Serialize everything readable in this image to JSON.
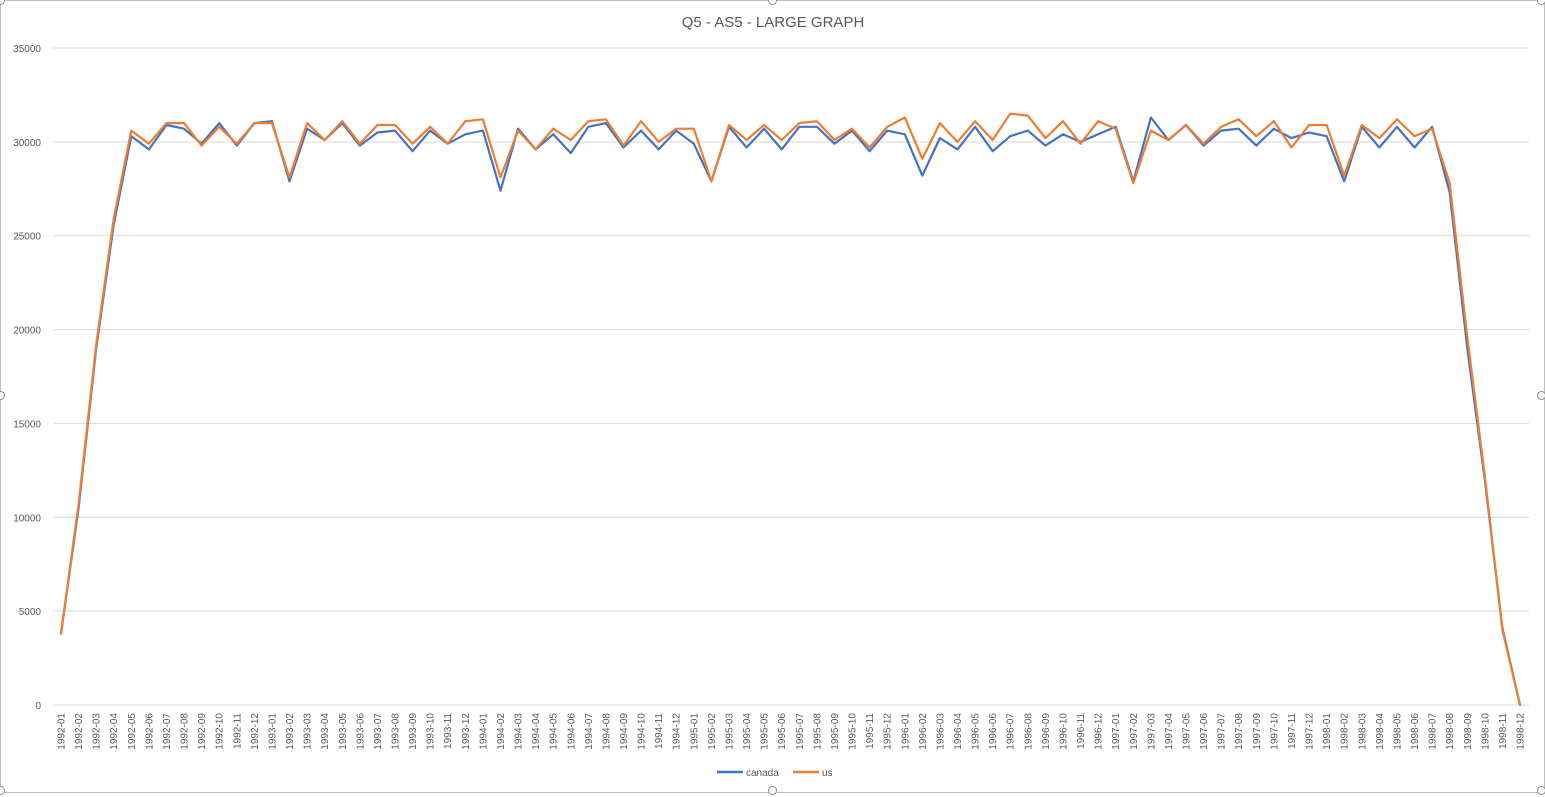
{
  "chart_data": {
    "type": "line",
    "title": "Q5 - AS5 - LARGE GRAPH",
    "xlabel": "",
    "ylabel": "",
    "ylim": [
      0,
      35000
    ],
    "yticks": [
      0,
      5000,
      10000,
      15000,
      20000,
      25000,
      30000,
      35000
    ],
    "grid": true,
    "legend_position": "bottom",
    "categories": [
      "1992-01",
      "1992-02",
      "1992-03",
      "1992-04",
      "1992-05",
      "1992-06",
      "1992-07",
      "1992-08",
      "1992-09",
      "1992-10",
      "1992-11",
      "1992-12",
      "1993-01",
      "1993-02",
      "1993-03",
      "1993-04",
      "1993-05",
      "1993-06",
      "1993-07",
      "1993-08",
      "1993-09",
      "1993-10",
      "1993-11",
      "1993-12",
      "1994-01",
      "1994-02",
      "1994-03",
      "1994-04",
      "1994-05",
      "1994-06",
      "1994-07",
      "1994-08",
      "1994-09",
      "1994-10",
      "1994-11",
      "1994-12",
      "1995-01",
      "1995-02",
      "1995-03",
      "1995-04",
      "1995-05",
      "1995-06",
      "1995-07",
      "1995-08",
      "1995-09",
      "1995-10",
      "1995-11",
      "1995-12",
      "1996-01",
      "1996-02",
      "1996-03",
      "1996-04",
      "1996-05",
      "1996-06",
      "1996-07",
      "1996-08",
      "1996-09",
      "1996-10",
      "1996-11",
      "1996-12",
      "1997-01",
      "1997-02",
      "1997-03",
      "1997-04",
      "1997-05",
      "1997-06",
      "1997-07",
      "1997-08",
      "1997-09",
      "1997-10",
      "1997-11",
      "1997-12",
      "1998-01",
      "1998-02",
      "1998-03",
      "1998-04",
      "1998-05",
      "1998-06",
      "1998-07",
      "1998-08",
      "1998-09",
      "1998-10",
      "1998-11",
      "1998-12"
    ],
    "series": [
      {
        "name": "canada",
        "color": "#4472c4",
        "values": [
          3800,
          10500,
          19000,
          25600,
          30300,
          29600,
          30900,
          30700,
          29900,
          31000,
          29800,
          31000,
          31100,
          27900,
          30700,
          30100,
          31000,
          29800,
          30500,
          30600,
          29500,
          30600,
          29900,
          30400,
          30600,
          27400,
          30700,
          29600,
          30400,
          29400,
          30800,
          31000,
          29700,
          30600,
          29600,
          30600,
          29900,
          27900,
          30800,
          29700,
          30700,
          29600,
          30800,
          30800,
          29900,
          30600,
          29500,
          30600,
          30400,
          28200,
          30200,
          29600,
          30800,
          29500,
          30300,
          30600,
          29800,
          30400,
          30000,
          30400,
          30800,
          27900,
          31300,
          30100,
          30900,
          29800,
          30600,
          30700,
          29800,
          30700,
          30200,
          30500,
          30300,
          27900,
          30800,
          29700,
          30800,
          29700,
          30800,
          27300,
          19000,
          12000,
          4100,
          0
        ]
      },
      {
        "name": "us",
        "color": "#ed7d31",
        "values": [
          3800,
          10700,
          19200,
          25900,
          30600,
          29900,
          31000,
          31000,
          29800,
          30800,
          29900,
          31000,
          31000,
          28100,
          31000,
          30100,
          31100,
          29900,
          30900,
          30900,
          29900,
          30800,
          29900,
          31100,
          31200,
          28100,
          30600,
          29600,
          30700,
          30100,
          31100,
          31200,
          29800,
          31100,
          30000,
          30700,
          30700,
          27900,
          30900,
          30100,
          30900,
          30100,
          31000,
          31100,
          30100,
          30700,
          29700,
          30800,
          31300,
          29100,
          31000,
          30000,
          31100,
          30100,
          31500,
          31400,
          30200,
          31100,
          29900,
          31100,
          30700,
          27800,
          30600,
          30100,
          30900,
          29900,
          30800,
          31200,
          30300,
          31100,
          29700,
          30900,
          30900,
          28200,
          30900,
          30200,
          31200,
          30300,
          30700,
          27800,
          19600,
          12200,
          4000,
          0
        ]
      }
    ]
  }
}
